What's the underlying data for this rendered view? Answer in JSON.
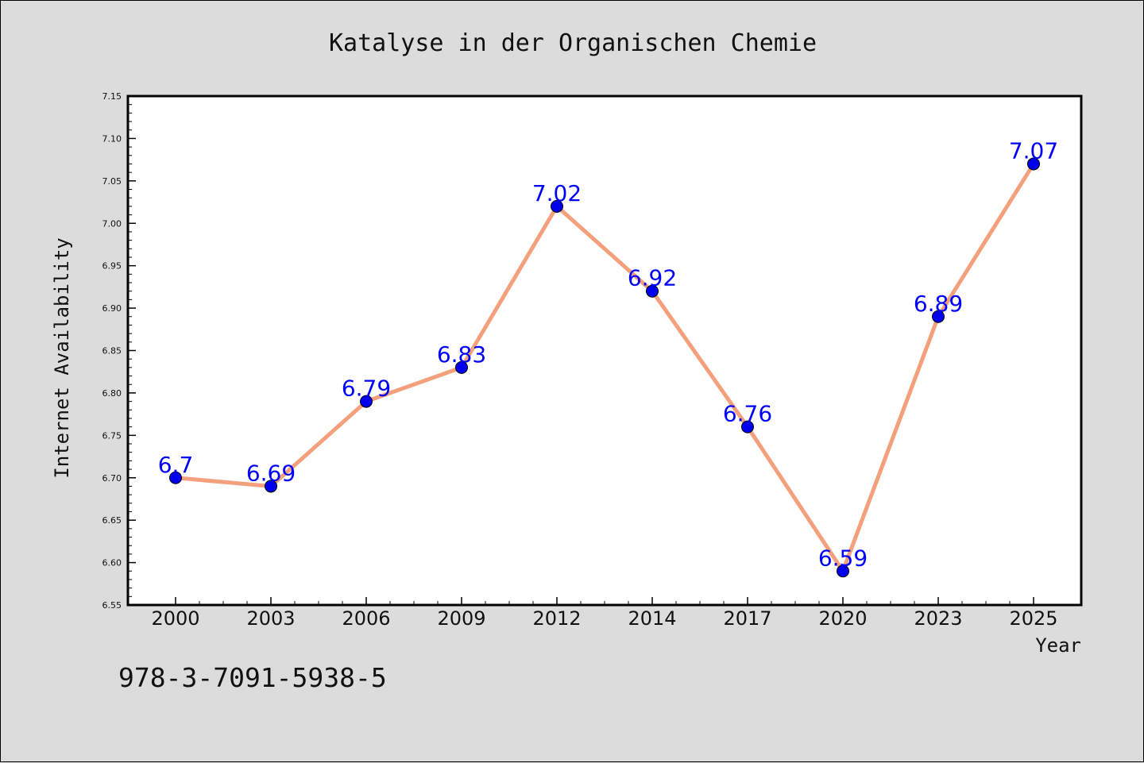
{
  "chart_data": {
    "type": "line",
    "title": "Katalyse in der Organischen Chemie",
    "xlabel": "Year",
    "ylabel": "Internet Availability",
    "categories": [
      "2000",
      "2003",
      "2006",
      "2009",
      "2012",
      "2014",
      "2017",
      "2020",
      "2023",
      "2025"
    ],
    "values": [
      6.7,
      6.69,
      6.79,
      6.83,
      7.02,
      6.92,
      6.76,
      6.59,
      6.89,
      7.07
    ],
    "data_labels": [
      "6.7",
      "6.69",
      "6.79",
      "6.83",
      "7.02",
      "6.92",
      "6.76",
      "6.59",
      "6.89",
      "7.07"
    ],
    "ylim": [
      6.55,
      7.15
    ],
    "yticks": [
      "6.55",
      "6.60",
      "6.65",
      "6.70",
      "6.75",
      "6.80",
      "6.85",
      "6.90",
      "6.95",
      "7.00",
      "7.05",
      "7.10",
      "7.15"
    ],
    "grid": false,
    "legend": "none",
    "colors": {
      "line": "#f4a07c",
      "marker": "#0000ee",
      "data_label": "#0000ff",
      "background": "#dcdcdc",
      "plot_area": "#ffffff"
    }
  },
  "footer": {
    "isbn": "978-3-7091-5938-5"
  }
}
